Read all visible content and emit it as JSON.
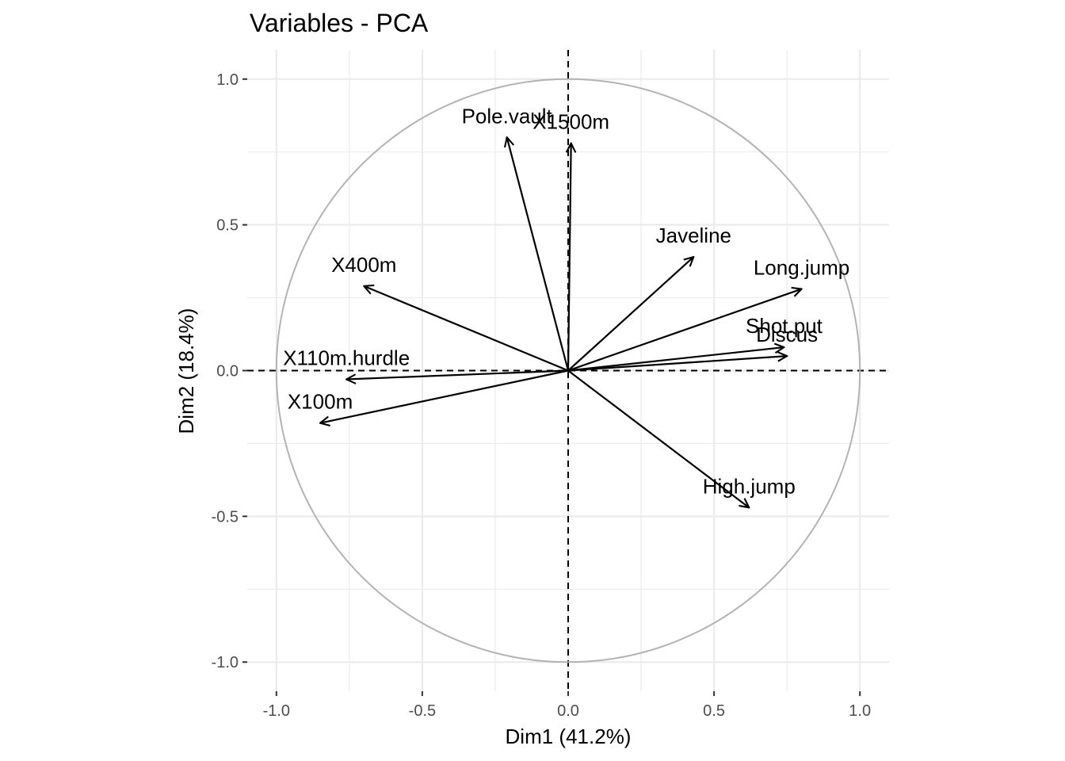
{
  "chart_data": {
    "type": "scatter",
    "title": "Variables - PCA",
    "xlabel": "Dim1 (41.2%)",
    "ylabel": "Dim2 (18.4%)",
    "xlim": [
      -1.1,
      1.1
    ],
    "ylim": [
      -1.1,
      1.1
    ],
    "xticks": [
      -1.0,
      -0.5,
      0.0,
      0.5,
      1.0
    ],
    "yticks": [
      -1.0,
      -0.5,
      0.0,
      0.5,
      1.0
    ],
    "xtick_labels": [
      "-1.0",
      "-0.5",
      "0.0",
      "0.5",
      "1.0"
    ],
    "ytick_labels": [
      "-1.0",
      "-0.5",
      "0.0",
      "0.5",
      "1.0"
    ],
    "grid": true,
    "unit_circle": true,
    "colors": {
      "arrow": "#000000",
      "circle": "#b3b3b3",
      "grid": "#ebebeb",
      "tick_text": "#4d4d4d"
    },
    "variables": [
      {
        "name": "X100m",
        "x": -0.85,
        "y": -0.18
      },
      {
        "name": "Long.jump",
        "x": 0.8,
        "y": 0.28
      },
      {
        "name": "Shot.put",
        "x": 0.74,
        "y": 0.08
      },
      {
        "name": "High.jump",
        "x": 0.62,
        "y": -0.47
      },
      {
        "name": "X400m",
        "x": -0.7,
        "y": 0.29
      },
      {
        "name": "X110m.hurdle",
        "x": -0.76,
        "y": -0.03
      },
      {
        "name": "Discus",
        "x": 0.75,
        "y": 0.05
      },
      {
        "name": "Pole.vault",
        "x": -0.21,
        "y": 0.8
      },
      {
        "name": "Javeline",
        "x": 0.43,
        "y": 0.39
      },
      {
        "name": "X1500m",
        "x": 0.01,
        "y": 0.78
      }
    ]
  }
}
